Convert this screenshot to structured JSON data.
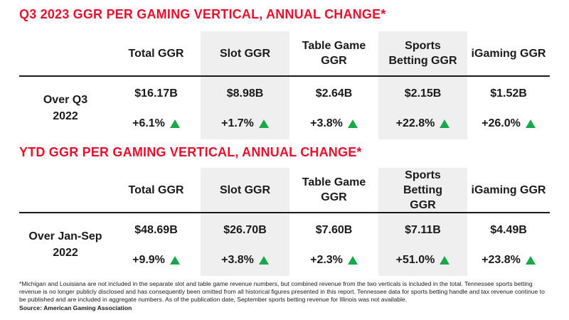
{
  "chart_data": [
    {
      "type": "table",
      "title": "Q3 2023 GGR PER GAMING VERTICAL, ANNUAL CHANGE*",
      "row_label": "Over Q3 2022",
      "columns": [
        "Total GGR",
        "Slot GGR",
        "Table Game GGR",
        "Sports Betting GGR",
        "iGaming GGR"
      ],
      "values": [
        "$16.17B",
        "$8.98B",
        "$2.64B",
        "$2.15B",
        "$1.52B"
      ],
      "changes": [
        "+6.1%",
        "+1.7%",
        "+3.8%",
        "+22.8%",
        "+26.0%"
      ]
    },
    {
      "type": "table",
      "title": "YTD GGR PER GAMING VERTICAL, ANNUAL CHANGE*",
      "row_label": "Over Jan-Sep 2022",
      "columns": [
        "Total GGR",
        "Slot GGR",
        "Table Game GGR",
        "Sports Betting GGR",
        "iGaming GGR"
      ],
      "values": [
        "$48.69B",
        "$26.70B",
        "$7.60B",
        "$7.11B",
        "$4.49B"
      ],
      "changes": [
        "+9.9%",
        "+3.8%",
        "+2.3%",
        "+51.0%",
        "+23.8%"
      ]
    }
  ],
  "colors": {
    "title": "#e8112d",
    "up_arrow": "#18a84a",
    "shade": "#efefef"
  },
  "footnote": "*Michigan and Louisiana are not included in the separate slot and table game revenue numbers, but combined revenue from the two verticals is included in the total. Tennessee sports betting revenue is no longer publicly disclosed and has consequently been omitted from all historical figures presented in this report. Tennessee data for sports betting handle and tax revenue continue to be published and are included in aggregate numbers. As of the publication date, September sports betting revenue for Illinois was not available.",
  "source": "Source: American Gaming Association"
}
